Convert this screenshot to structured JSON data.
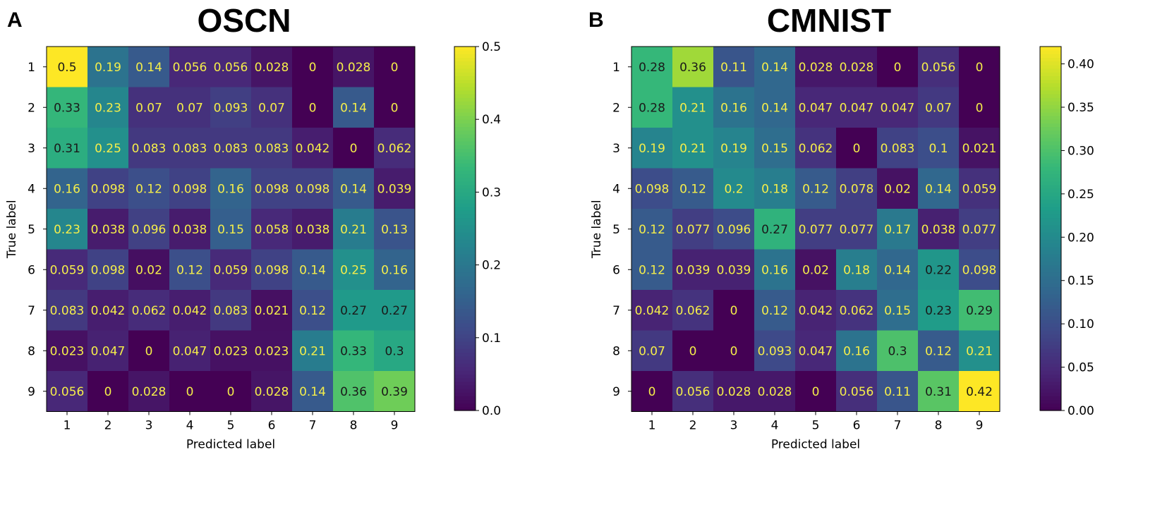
{
  "panels": [
    {
      "letter": "A",
      "title": "OSCN"
    },
    {
      "letter": "B",
      "title": "CMNIST"
    }
  ],
  "chart_data": [
    {
      "type": "heatmap",
      "title": "OSCN",
      "panel_label": "A",
      "xlabel": "Predicted label",
      "ylabel": "True label",
      "x_ticks": [
        "1",
        "2",
        "3",
        "4",
        "5",
        "6",
        "7",
        "8",
        "9"
      ],
      "y_ticks": [
        "1",
        "2",
        "3",
        "4",
        "5",
        "6",
        "7",
        "8",
        "9"
      ],
      "cell_labels": [
        [
          "0.5",
          "0.19",
          "0.14",
          "0.056",
          "0.056",
          "0.028",
          "0",
          "0.028",
          "0"
        ],
        [
          "0.33",
          "0.23",
          "0.07",
          "0.07",
          "0.093",
          "0.07",
          "0",
          "0.14",
          "0"
        ],
        [
          "0.31",
          "0.25",
          "0.083",
          "0.083",
          "0.083",
          "0.083",
          "0.042",
          "0",
          "0.062"
        ],
        [
          "0.16",
          "0.098",
          "0.12",
          "0.098",
          "0.16",
          "0.098",
          "0.098",
          "0.14",
          "0.039"
        ],
        [
          "0.23",
          "0.038",
          "0.096",
          "0.038",
          "0.15",
          "0.058",
          "0.038",
          "0.21",
          "0.13"
        ],
        [
          "0.059",
          "0.098",
          "0.02",
          "0.12",
          "0.059",
          "0.098",
          "0.14",
          "0.25",
          "0.16"
        ],
        [
          "0.083",
          "0.042",
          "0.062",
          "0.042",
          "0.083",
          "0.021",
          "0.12",
          "0.27",
          "0.27"
        ],
        [
          "0.023",
          "0.047",
          "0",
          "0.047",
          "0.023",
          "0.023",
          "0.21",
          "0.33",
          "0.3"
        ],
        [
          "0.056",
          "0",
          "0.028",
          "0",
          "0",
          "0.028",
          "0.14",
          "0.36",
          "0.39"
        ]
      ],
      "colorbar": {
        "min": 0.0,
        "max": 0.5,
        "ticks": [
          "0.0",
          "0.1",
          "0.2",
          "0.3",
          "0.4",
          "0.5"
        ],
        "tick_values": [
          0,
          0.1,
          0.2,
          0.3,
          0.4,
          0.5
        ]
      },
      "colormap": "viridis"
    },
    {
      "type": "heatmap",
      "title": "CMNIST",
      "panel_label": "B",
      "xlabel": "Predicted label",
      "ylabel": "True label",
      "x_ticks": [
        "1",
        "2",
        "3",
        "4",
        "5",
        "6",
        "7",
        "8",
        "9"
      ],
      "y_ticks": [
        "1",
        "2",
        "3",
        "4",
        "5",
        "6",
        "7",
        "8",
        "9"
      ],
      "cell_labels": [
        [
          "0.28",
          "0.36",
          "0.11",
          "0.14",
          "0.028",
          "0.028",
          "0",
          "0.056",
          "0"
        ],
        [
          "0.28",
          "0.21",
          "0.16",
          "0.14",
          "0.047",
          "0.047",
          "0.047",
          "0.07",
          "0"
        ],
        [
          "0.19",
          "0.21",
          "0.19",
          "0.15",
          "0.062",
          "0",
          "0.083",
          "0.1",
          "0.021"
        ],
        [
          "0.098",
          "0.12",
          "0.2",
          "0.18",
          "0.12",
          "0.078",
          "0.02",
          "0.14",
          "0.059"
        ],
        [
          "0.12",
          "0.077",
          "0.096",
          "0.27",
          "0.077",
          "0.077",
          "0.17",
          "0.038",
          "0.077"
        ],
        [
          "0.12",
          "0.039",
          "0.039",
          "0.16",
          "0.02",
          "0.18",
          "0.14",
          "0.22",
          "0.098"
        ],
        [
          "0.042",
          "0.062",
          "0",
          "0.12",
          "0.042",
          "0.062",
          "0.15",
          "0.23",
          "0.29"
        ],
        [
          "0.07",
          "0",
          "0",
          "0.093",
          "0.047",
          "0.16",
          "0.3",
          "0.12",
          "0.21"
        ],
        [
          "0",
          "0.056",
          "0.028",
          "0.028",
          "0",
          "0.056",
          "0.11",
          "0.31",
          "0.42"
        ]
      ],
      "colorbar": {
        "min": 0.0,
        "max": 0.42,
        "ticks": [
          "0.00",
          "0.05",
          "0.10",
          "0.15",
          "0.20",
          "0.25",
          "0.30",
          "0.35",
          "0.40"
        ],
        "tick_values": [
          0,
          0.05,
          0.1,
          0.15,
          0.2,
          0.25,
          0.3,
          0.35,
          0.4
        ]
      },
      "colormap": "viridis"
    }
  ]
}
